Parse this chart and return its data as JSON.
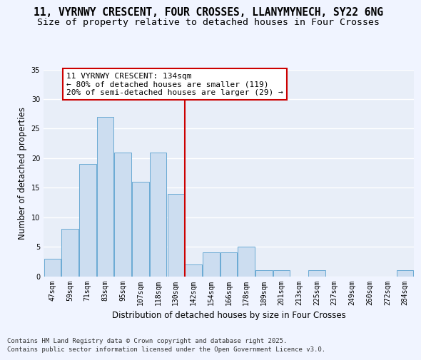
{
  "title": "11, VYRNWY CRESCENT, FOUR CROSSES, LLANYMYNECH, SY22 6NG",
  "subtitle": "Size of property relative to detached houses in Four Crosses",
  "xlabel": "Distribution of detached houses by size in Four Crosses",
  "ylabel": "Number of detached properties",
  "bar_color": "#ccddf0",
  "bar_edge_color": "#6aaad4",
  "background_color": "#e8eef8",
  "grid_color": "#ffffff",
  "bins": [
    "47sqm",
    "59sqm",
    "71sqm",
    "83sqm",
    "95sqm",
    "107sqm",
    "118sqm",
    "130sqm",
    "142sqm",
    "154sqm",
    "166sqm",
    "178sqm",
    "189sqm",
    "201sqm",
    "213sqm",
    "225sqm",
    "237sqm",
    "249sqm",
    "260sqm",
    "272sqm",
    "284sqm"
  ],
  "values": [
    3,
    8,
    19,
    27,
    21,
    16,
    21,
    14,
    2,
    4,
    4,
    5,
    1,
    1,
    0,
    1,
    0,
    0,
    0,
    0,
    1
  ],
  "vline_index": 7.5,
  "vline_color": "#cc0000",
  "annotation_text": "11 VYRNWY CRESCENT: 134sqm\n← 80% of detached houses are smaller (119)\n20% of semi-detached houses are larger (29) →",
  "annotation_box_color": "#cc0000",
  "ylim": [
    0,
    35
  ],
  "yticks": [
    0,
    5,
    10,
    15,
    20,
    25,
    30,
    35
  ],
  "footer": "Contains HM Land Registry data © Crown copyright and database right 2025.\nContains public sector information licensed under the Open Government Licence v3.0.",
  "title_fontsize": 10.5,
  "subtitle_fontsize": 9.5,
  "axis_label_fontsize": 8.5,
  "tick_fontsize": 7,
  "annotation_fontsize": 8,
  "footer_fontsize": 6.5,
  "fig_bg_color": "#f0f4ff"
}
